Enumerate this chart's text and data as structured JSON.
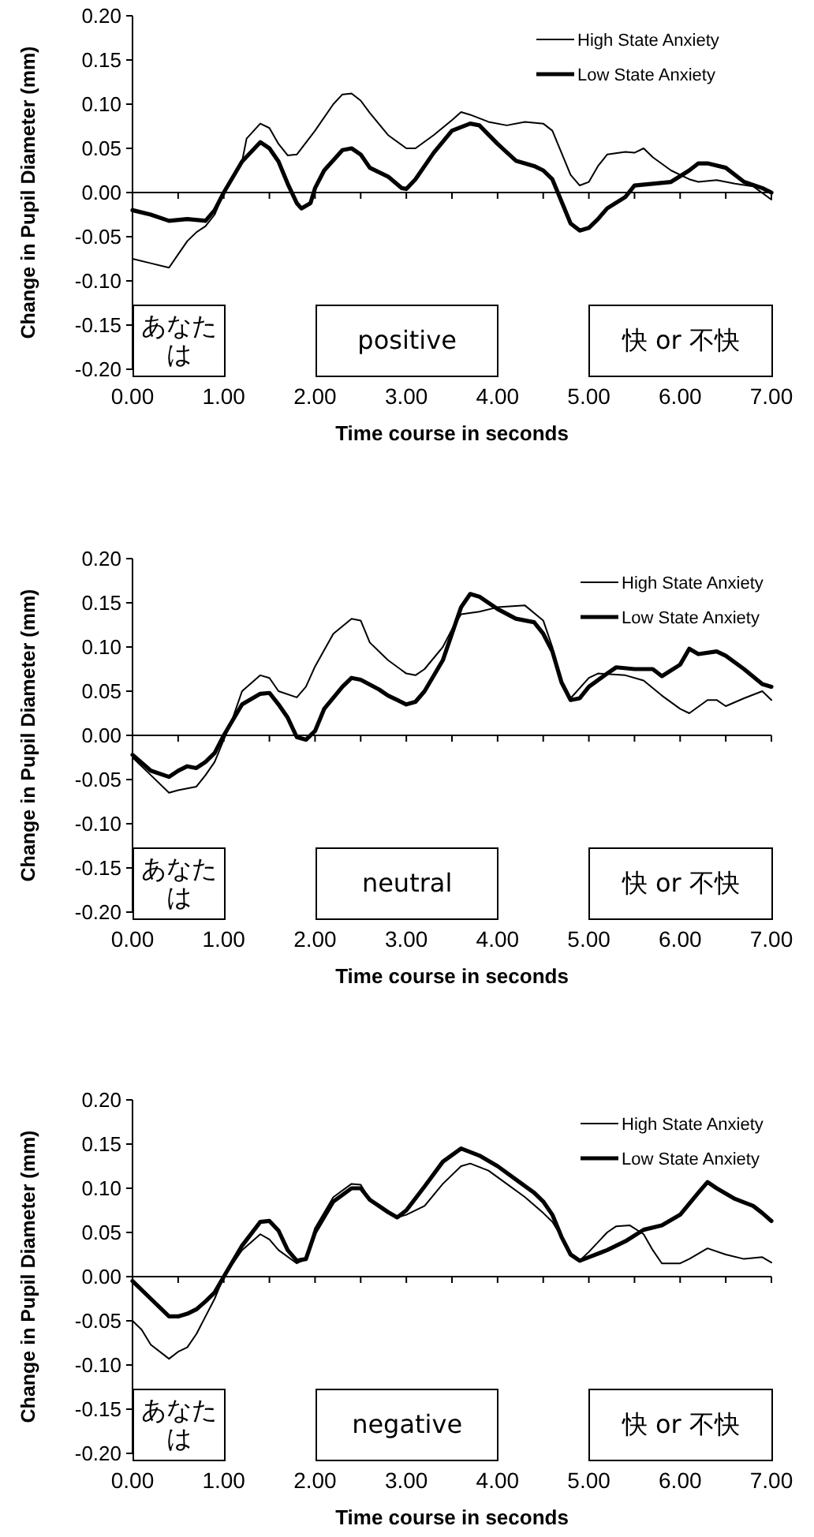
{
  "chart_data": [
    {
      "type": "line",
      "xlabel": "Time course in seconds",
      "ylabel": "Change in Pupil Diameter (mm)",
      "legend": "top right",
      "xlim": [
        0,
        7
      ],
      "ylim": [
        -0.2,
        0.2
      ],
      "xticks": [
        {
          "value": 0,
          "label": "0.00"
        },
        {
          "value": 0.5,
          "label": null
        },
        {
          "value": 1,
          "label": "1.00"
        },
        {
          "value": 1.5,
          "label": null
        },
        {
          "value": 2,
          "label": "2.00"
        },
        {
          "value": 2.5,
          "label": null
        },
        {
          "value": 3,
          "label": "3.00"
        },
        {
          "value": 3.5,
          "label": null
        },
        {
          "value": 4,
          "label": "4.00"
        },
        {
          "value": 4.5,
          "label": null
        },
        {
          "value": 5,
          "label": "5.00"
        },
        {
          "value": 5.5,
          "label": null
        },
        {
          "value": 6,
          "label": "6.00"
        },
        {
          "value": 6.5,
          "label": null
        },
        {
          "value": 7,
          "label": "7.00"
        }
      ],
      "yticks": [
        {
          "value": -0.2,
          "label": "-0.20"
        },
        {
          "value": -0.15,
          "label": "-0.15"
        },
        {
          "value": -0.1,
          "label": "-0.10"
        },
        {
          "value": -0.05,
          "label": "-0.05"
        },
        {
          "value": 0,
          "label": "0.00"
        },
        {
          "value": 0.05,
          "label": "0.05"
        },
        {
          "value": 0.1,
          "label": "0.10"
        },
        {
          "value": 0.15,
          "label": "0.15"
        },
        {
          "value": 0.2,
          "label": "0.20"
        }
      ],
      "bands": [
        {
          "axis": "x",
          "from": 0,
          "to": 1,
          "label": "あなたは"
        },
        {
          "axis": "x",
          "from": 2,
          "to": 4,
          "label": "positive"
        },
        {
          "axis": "x",
          "from": 5,
          "to": 7,
          "label": "快 or 不快"
        }
      ],
      "series": [
        {
          "name": "High State Anxiety",
          "color": "#000000",
          "x": [
            0,
            0.2,
            0.4,
            0.5,
            0.6,
            0.7,
            0.8,
            0.9,
            1.0,
            1.2,
            1.25,
            1.4,
            1.5,
            1.6,
            1.7,
            1.8,
            2.0,
            2.2,
            2.3,
            2.4,
            2.5,
            2.6,
            2.8,
            3.0,
            3.1,
            3.3,
            3.5,
            3.6,
            3.7,
            3.9,
            4.1,
            4.3,
            4.5,
            4.6,
            4.7,
            4.8,
            4.9,
            5.0,
            5.1,
            5.2,
            5.4,
            5.5,
            5.6,
            5.7,
            5.9,
            6.1,
            6.2,
            6.4,
            6.6,
            6.8,
            7.0
          ],
          "values": [
            -0.075,
            -0.08,
            -0.085,
            -0.07,
            -0.055,
            -0.045,
            -0.038,
            -0.025,
            0.0,
            0.035,
            0.061,
            0.078,
            0.073,
            0.055,
            0.042,
            0.043,
            0.07,
            0.1,
            0.111,
            0.112,
            0.104,
            0.09,
            0.065,
            0.05,
            0.05,
            0.065,
            0.082,
            0.091,
            0.088,
            0.08,
            0.076,
            0.08,
            0.078,
            0.07,
            0.045,
            0.02,
            0.008,
            0.012,
            0.03,
            0.043,
            0.046,
            0.045,
            0.05,
            0.04,
            0.025,
            0.015,
            0.012,
            0.014,
            0.01,
            0.007,
            -0.008
          ]
        },
        {
          "name": "Low State Anxiety",
          "color": "#000000",
          "x": [
            0,
            0.2,
            0.4,
            0.6,
            0.8,
            0.9,
            1.0,
            1.2,
            1.4,
            1.5,
            1.6,
            1.7,
            1.8,
            1.85,
            1.95,
            2.0,
            2.1,
            2.3,
            2.4,
            2.5,
            2.6,
            2.8,
            2.95,
            3.0,
            3.1,
            3.3,
            3.5,
            3.7,
            3.8,
            4.0,
            4.2,
            4.4,
            4.5,
            4.6,
            4.7,
            4.8,
            4.9,
            5.0,
            5.1,
            5.2,
            5.4,
            5.5,
            5.7,
            5.9,
            6.1,
            6.2,
            6.3,
            6.5,
            6.7,
            6.9,
            7.0
          ],
          "values": [
            -0.02,
            -0.025,
            -0.032,
            -0.03,
            -0.032,
            -0.02,
            0.0,
            0.035,
            0.057,
            0.05,
            0.035,
            0.01,
            -0.012,
            -0.018,
            -0.012,
            0.005,
            0.025,
            0.048,
            0.05,
            0.043,
            0.028,
            0.018,
            0.005,
            0.004,
            0.015,
            0.045,
            0.07,
            0.078,
            0.076,
            0.055,
            0.036,
            0.03,
            0.025,
            0.015,
            -0.01,
            -0.035,
            -0.043,
            -0.04,
            -0.03,
            -0.018,
            -0.005,
            0.008,
            0.01,
            0.012,
            0.025,
            0.033,
            0.033,
            0.028,
            0.012,
            0.005,
            0.0
          ]
        }
      ]
    },
    {
      "type": "line",
      "xlabel": "Time course in seconds",
      "ylabel": "Change in Pupil Diameter (mm)",
      "legend": "top right",
      "xlim": [
        0,
        7
      ],
      "ylim": [
        -0.2,
        0.2
      ],
      "xticks": [
        {
          "value": 0,
          "label": "0.00"
        },
        {
          "value": 0.5,
          "label": null
        },
        {
          "value": 1,
          "label": "1.00"
        },
        {
          "value": 1.5,
          "label": null
        },
        {
          "value": 2,
          "label": "2.00"
        },
        {
          "value": 2.5,
          "label": null
        },
        {
          "value": 3,
          "label": "3.00"
        },
        {
          "value": 3.5,
          "label": null
        },
        {
          "value": 4,
          "label": "4.00"
        },
        {
          "value": 4.5,
          "label": null
        },
        {
          "value": 5,
          "label": "5.00"
        },
        {
          "value": 5.5,
          "label": null
        },
        {
          "value": 6,
          "label": "6.00"
        },
        {
          "value": 6.5,
          "label": null
        },
        {
          "value": 7,
          "label": "7.00"
        }
      ],
      "yticks": [
        {
          "value": -0.2,
          "label": "-0.20"
        },
        {
          "value": -0.15,
          "label": "-0.15"
        },
        {
          "value": -0.1,
          "label": "-0.10"
        },
        {
          "value": -0.05,
          "label": "-0.05"
        },
        {
          "value": 0,
          "label": "0.00"
        },
        {
          "value": 0.05,
          "label": "0.05"
        },
        {
          "value": 0.1,
          "label": "0.10"
        },
        {
          "value": 0.15,
          "label": "0.15"
        },
        {
          "value": 0.2,
          "label": "0.20"
        }
      ],
      "bands": [
        {
          "axis": "x",
          "from": 0,
          "to": 1,
          "label": "あなたは"
        },
        {
          "axis": "x",
          "from": 2,
          "to": 4,
          "label": "neutral"
        },
        {
          "axis": "x",
          "from": 5,
          "to": 7,
          "label": "快 or 不快"
        }
      ],
      "series": [
        {
          "name": "High State Anxiety",
          "color": "#000000",
          "x": [
            0,
            0.2,
            0.4,
            0.5,
            0.7,
            0.8,
            0.9,
            1.0,
            1.1,
            1.2,
            1.4,
            1.5,
            1.6,
            1.8,
            1.9,
            2.0,
            2.2,
            2.4,
            2.5,
            2.6,
            2.8,
            3.0,
            3.1,
            3.2,
            3.4,
            3.5,
            3.6,
            3.8,
            4.0,
            4.3,
            4.5,
            4.6,
            4.7,
            4.8,
            5.0,
            5.1,
            5.4,
            5.6,
            5.8,
            6.0,
            6.1,
            6.3,
            6.4,
            6.5,
            6.7,
            6.9,
            7.0
          ],
          "values": [
            -0.025,
            -0.045,
            -0.065,
            -0.062,
            -0.058,
            -0.045,
            -0.03,
            -0.005,
            0.02,
            0.05,
            0.068,
            0.065,
            0.05,
            0.043,
            0.055,
            0.078,
            0.115,
            0.132,
            0.13,
            0.105,
            0.085,
            0.07,
            0.068,
            0.075,
            0.1,
            0.12,
            0.137,
            0.14,
            0.145,
            0.147,
            0.13,
            0.1,
            0.06,
            0.042,
            0.065,
            0.07,
            0.068,
            0.062,
            0.045,
            0.03,
            0.025,
            0.04,
            0.04,
            0.033,
            0.042,
            0.05,
            0.04
          ]
        },
        {
          "name": "Low State Anxiety",
          "color": "#000000",
          "x": [
            0,
            0.2,
            0.4,
            0.5,
            0.6,
            0.7,
            0.8,
            0.9,
            1.0,
            1.2,
            1.4,
            1.5,
            1.6,
            1.7,
            1.8,
            1.9,
            2.0,
            2.1,
            2.3,
            2.4,
            2.5,
            2.7,
            2.8,
            2.9,
            3.0,
            3.1,
            3.2,
            3.4,
            3.5,
            3.6,
            3.7,
            3.8,
            4.0,
            4.2,
            4.4,
            4.5,
            4.6,
            4.7,
            4.8,
            4.9,
            5.0,
            5.2,
            5.3,
            5.5,
            5.7,
            5.8,
            6.0,
            6.1,
            6.2,
            6.4,
            6.5,
            6.7,
            6.9,
            7.0
          ],
          "values": [
            -0.022,
            -0.04,
            -0.047,
            -0.04,
            -0.035,
            -0.037,
            -0.03,
            -0.02,
            0.0,
            0.035,
            0.047,
            0.048,
            0.035,
            0.02,
            -0.002,
            -0.005,
            0.005,
            0.03,
            0.055,
            0.065,
            0.063,
            0.052,
            0.045,
            0.04,
            0.035,
            0.038,
            0.05,
            0.085,
            0.115,
            0.145,
            0.16,
            0.157,
            0.143,
            0.132,
            0.128,
            0.115,
            0.095,
            0.06,
            0.04,
            0.042,
            0.055,
            0.07,
            0.077,
            0.075,
            0.075,
            0.067,
            0.08,
            0.098,
            0.092,
            0.095,
            0.09,
            0.075,
            0.058,
            0.055
          ]
        }
      ]
    },
    {
      "type": "line",
      "xlabel": "Time course in seconds",
      "ylabel": "Change in Pupil Diameter (mm)",
      "legend": "top right",
      "xlim": [
        0,
        7
      ],
      "ylim": [
        -0.2,
        0.2
      ],
      "xticks": [
        {
          "value": 0,
          "label": "0.00"
        },
        {
          "value": 0.5,
          "label": null
        },
        {
          "value": 1,
          "label": "1.00"
        },
        {
          "value": 1.5,
          "label": null
        },
        {
          "value": 2,
          "label": "2.00"
        },
        {
          "value": 2.5,
          "label": null
        },
        {
          "value": 3,
          "label": "3.00"
        },
        {
          "value": 3.5,
          "label": null
        },
        {
          "value": 4,
          "label": "4.00"
        },
        {
          "value": 4.5,
          "label": null
        },
        {
          "value": 5,
          "label": "5.00"
        },
        {
          "value": 5.5,
          "label": null
        },
        {
          "value": 6,
          "label": "6.00"
        },
        {
          "value": 6.5,
          "label": null
        },
        {
          "value": 7,
          "label": "7.00"
        }
      ],
      "yticks": [
        {
          "value": -0.2,
          "label": "-0.20"
        },
        {
          "value": -0.15,
          "label": "-0.15"
        },
        {
          "value": -0.1,
          "label": "-0.10"
        },
        {
          "value": -0.05,
          "label": "-0.05"
        },
        {
          "value": 0,
          "label": "0.00"
        },
        {
          "value": 0.05,
          "label": "0.05"
        },
        {
          "value": 0.1,
          "label": "0.10"
        },
        {
          "value": 0.15,
          "label": "0.15"
        },
        {
          "value": 0.2,
          "label": "0.20"
        }
      ],
      "bands": [
        {
          "axis": "x",
          "from": 0,
          "to": 1,
          "label": "あなたは"
        },
        {
          "axis": "x",
          "from": 2,
          "to": 4,
          "label": "negative"
        },
        {
          "axis": "x",
          "from": 5,
          "to": 7,
          "label": "快 or 不快"
        }
      ],
      "series": [
        {
          "name": "High State Anxiety",
          "color": "#000000",
          "x": [
            0,
            0.1,
            0.2,
            0.4,
            0.5,
            0.6,
            0.7,
            0.8,
            0.9,
            1.0,
            1.2,
            1.4,
            1.5,
            1.6,
            1.8,
            1.9,
            2.0,
            2.2,
            2.4,
            2.5,
            2.6,
            2.8,
            2.9,
            3.0,
            3.2,
            3.4,
            3.6,
            3.7,
            3.9,
            4.1,
            4.3,
            4.5,
            4.6,
            4.7,
            4.8,
            4.9,
            5.0,
            5.2,
            5.3,
            5.45,
            5.6,
            5.7,
            5.8,
            6.0,
            6.1,
            6.3,
            6.5,
            6.7,
            6.9,
            7.0
          ],
          "values": [
            -0.05,
            -0.06,
            -0.077,
            -0.093,
            -0.085,
            -0.08,
            -0.065,
            -0.045,
            -0.025,
            0.0,
            0.03,
            0.048,
            0.042,
            0.03,
            0.015,
            0.02,
            0.055,
            0.09,
            0.105,
            0.104,
            0.087,
            0.072,
            0.067,
            0.07,
            0.08,
            0.105,
            0.125,
            0.128,
            0.12,
            0.105,
            0.09,
            0.072,
            0.062,
            0.045,
            0.025,
            0.018,
            0.028,
            0.05,
            0.057,
            0.058,
            0.048,
            0.03,
            0.015,
            0.015,
            0.02,
            0.032,
            0.025,
            0.02,
            0.022,
            0.016
          ]
        },
        {
          "name": "Low State Anxiety",
          "color": "#000000",
          "x": [
            0,
            0.2,
            0.4,
            0.5,
            0.6,
            0.7,
            0.8,
            0.9,
            1.0,
            1.2,
            1.4,
            1.5,
            1.6,
            1.7,
            1.8,
            1.9,
            2.0,
            2.2,
            2.4,
            2.5,
            2.6,
            2.8,
            2.9,
            3.0,
            3.2,
            3.4,
            3.6,
            3.8,
            4.0,
            4.2,
            4.4,
            4.5,
            4.6,
            4.7,
            4.8,
            4.9,
            5.0,
            5.2,
            5.4,
            5.6,
            5.8,
            6.0,
            6.2,
            6.3,
            6.4,
            6.6,
            6.8,
            6.9,
            7.0
          ],
          "values": [
            -0.005,
            -0.025,
            -0.045,
            -0.045,
            -0.042,
            -0.037,
            -0.028,
            -0.018,
            0.0,
            0.035,
            0.062,
            0.063,
            0.052,
            0.03,
            0.018,
            0.02,
            0.05,
            0.085,
            0.1,
            0.1,
            0.087,
            0.073,
            0.067,
            0.075,
            0.102,
            0.13,
            0.145,
            0.137,
            0.125,
            0.11,
            0.095,
            0.085,
            0.07,
            0.045,
            0.025,
            0.018,
            0.022,
            0.03,
            0.04,
            0.053,
            0.058,
            0.07,
            0.095,
            0.107,
            0.1,
            0.088,
            0.08,
            0.072,
            0.063
          ]
        }
      ]
    }
  ]
}
